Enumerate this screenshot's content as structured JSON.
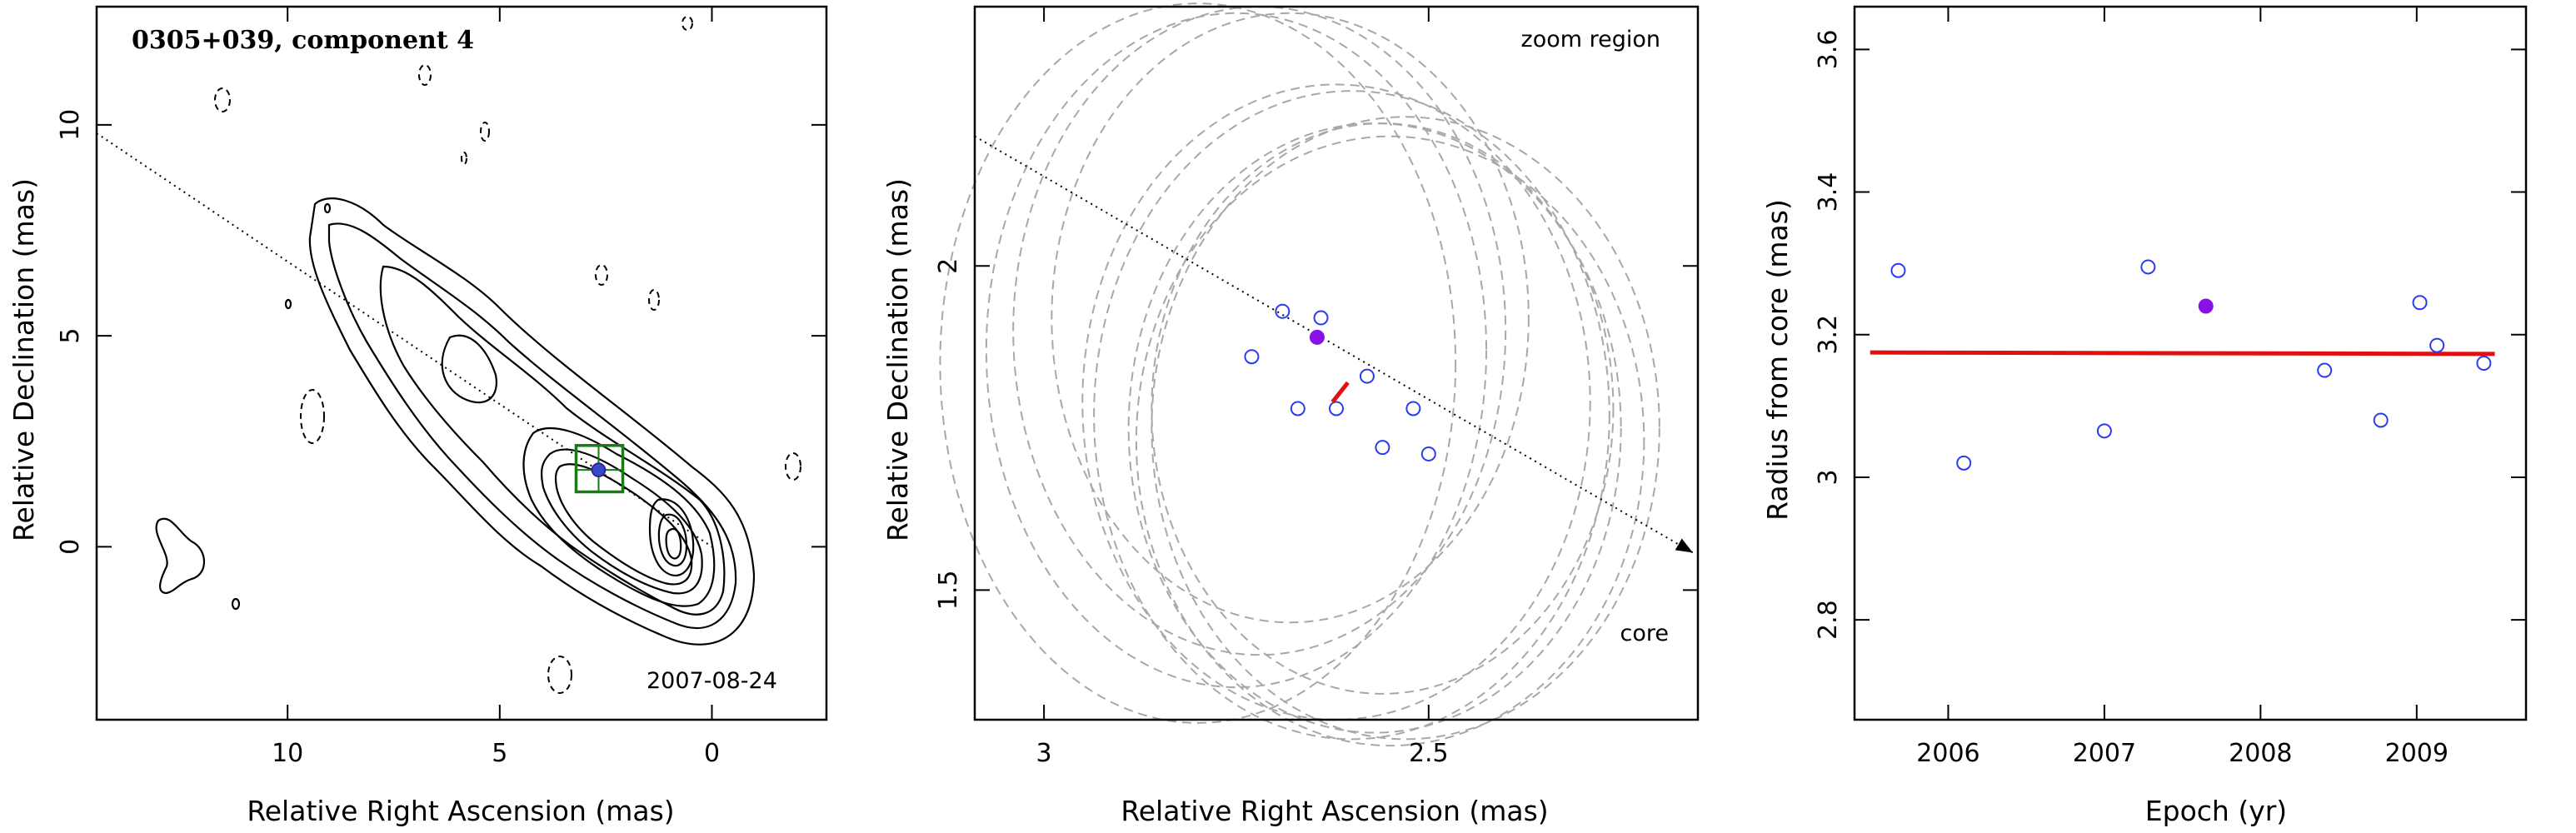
{
  "chart_data": [
    {
      "type": "contour",
      "title": "0305+039, component 4",
      "epoch_label": "2007-08-24",
      "xlabel": "Relative Right Ascension (mas)",
      "ylabel": "Relative Declination (mas)",
      "xlim": [
        14.5,
        -2.7
      ],
      "ylim": [
        -4.1,
        12.8
      ],
      "x_inverted": true,
      "xticks": [
        10,
        5,
        0
      ],
      "xtick_labels": [
        "10",
        "5",
        "0"
      ],
      "yticks": [
        0,
        5,
        10
      ],
      "ytick_labels": [
        "0",
        "5",
        "10"
      ],
      "component_position": {
        "x": 2.67,
        "y": 1.82
      },
      "zoom_box": {
        "x_range": [
          3.2,
          2.1
        ],
        "y_range": [
          1.3,
          2.4
        ]
      },
      "jet_direction_line": {
        "from": [
          14.5,
          9.8
        ],
        "to": [
          0,
          0
        ]
      }
    },
    {
      "type": "scatter",
      "annotation_top": "zoom region",
      "annotation_core": "core",
      "xlabel": "Relative Right Ascension (mas)",
      "ylabel": "Relative Declination (mas)",
      "xlim": [
        3.09,
        2.15
      ],
      "ylim": [
        1.3,
        2.4
      ],
      "x_inverted": true,
      "xticks": [
        3,
        2.5
      ],
      "xtick_labels": [
        "3",
        "2.5"
      ],
      "yticks": [
        1.5,
        2
      ],
      "ytick_labels": [
        "1.5",
        "2"
      ],
      "points_open": [
        {
          "x": 2.73,
          "y": 1.86
        },
        {
          "x": 2.69,
          "y": 1.93
        },
        {
          "x": 2.64,
          "y": 1.92
        },
        {
          "x": 2.67,
          "y": 1.78
        },
        {
          "x": 2.62,
          "y": 1.78
        },
        {
          "x": 2.58,
          "y": 1.83
        },
        {
          "x": 2.52,
          "y": 1.78
        },
        {
          "x": 2.56,
          "y": 1.72
        },
        {
          "x": 2.5,
          "y": 1.71
        }
      ],
      "point_filled": {
        "x": 2.645,
        "y": 1.89
      },
      "motion_vector": {
        "from": [
          2.625,
          1.79
        ],
        "to": [
          2.605,
          1.82
        ]
      },
      "error_ellipses": [
        {
          "cx": 2.8,
          "cy": 1.85,
          "rx": 0.335,
          "ry": 0.555
        },
        {
          "cx": 2.75,
          "cy": 1.87,
          "rx": 0.325,
          "ry": 0.52
        },
        {
          "cx": 2.72,
          "cy": 1.9,
          "rx": 0.32,
          "ry": 0.5
        },
        {
          "cx": 2.68,
          "cy": 1.92,
          "rx": 0.31,
          "ry": 0.47
        },
        {
          "cx": 2.62,
          "cy": 1.79,
          "rx": 0.33,
          "ry": 0.49
        },
        {
          "cx": 2.6,
          "cy": 1.77,
          "rx": 0.335,
          "ry": 0.5
        },
        {
          "cx": 2.57,
          "cy": 1.75,
          "rx": 0.32,
          "ry": 0.47
        },
        {
          "cx": 2.55,
          "cy": 1.73,
          "rx": 0.33,
          "ry": 0.47
        },
        {
          "cx": 2.53,
          "cy": 1.75,
          "rx": 0.33,
          "ry": 0.48
        },
        {
          "cx": 2.56,
          "cy": 1.78,
          "rx": 0.3,
          "ry": 0.44
        }
      ],
      "jet_direction_line": {
        "from": [
          3.09,
          2.2
        ],
        "to": [
          2.15,
          1.55
        ]
      }
    },
    {
      "type": "scatter",
      "xlabel": "Epoch (yr)",
      "ylabel": "Radius from core (mas)",
      "xlim": [
        2005.4,
        2009.7
      ],
      "ylim": [
        2.66,
        3.66
      ],
      "xticks": [
        2006,
        2007,
        2008,
        2009
      ],
      "xtick_labels": [
        "2006",
        "2007",
        "2008",
        "2009"
      ],
      "yticks": [
        2.8,
        3,
        3.2,
        3.4,
        3.6
      ],
      "ytick_labels": [
        "2.8",
        "3",
        "3.2",
        "3.4",
        "3.6"
      ],
      "points_open": [
        {
          "x": 2005.68,
          "y": 3.29
        },
        {
          "x": 2006.1,
          "y": 3.02
        },
        {
          "x": 2007.0,
          "y": 3.065
        },
        {
          "x": 2007.28,
          "y": 3.295
        },
        {
          "x": 2008.41,
          "y": 3.15
        },
        {
          "x": 2008.77,
          "y": 3.08
        },
        {
          "x": 2009.02,
          "y": 3.245
        },
        {
          "x": 2009.13,
          "y": 3.185
        },
        {
          "x": 2009.43,
          "y": 3.16
        }
      ],
      "point_filled": {
        "x": 2007.65,
        "y": 3.24
      },
      "fit_line": {
        "x": [
          2005.5,
          2009.5
        ],
        "y": [
          3.175,
          3.173
        ]
      }
    }
  ]
}
